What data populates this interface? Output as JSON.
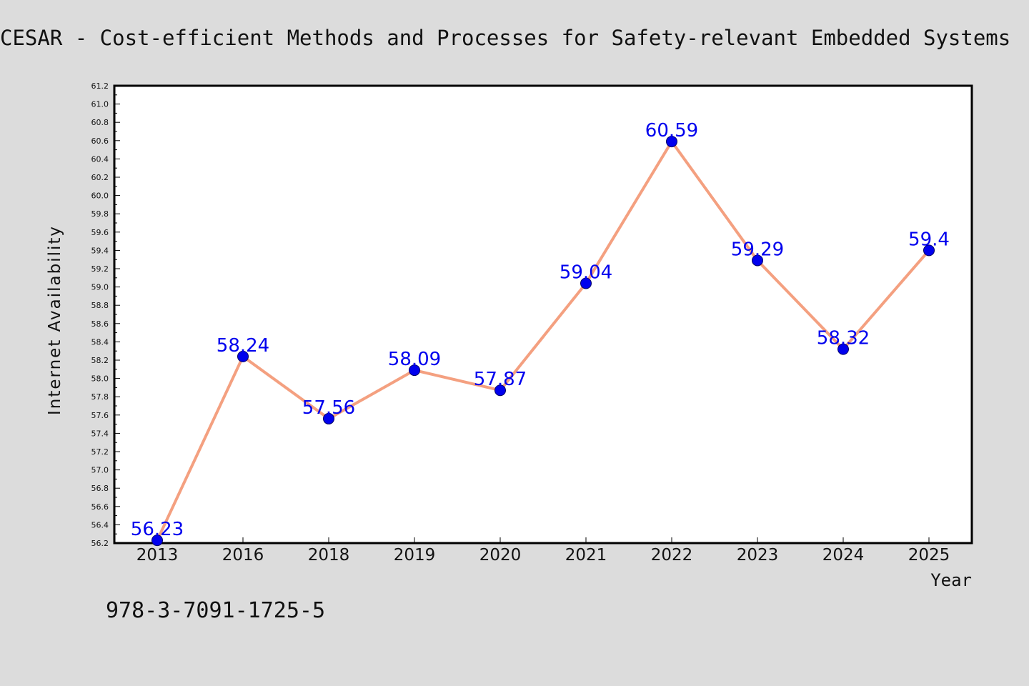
{
  "page": {
    "title": "CESAR - Cost-efficient Methods and Processes for Safety-relevant Embedded Systems",
    "note": "978-3-7091-1725-5"
  },
  "colors": {
    "background": "#dcdcdc",
    "plot_background": "#ffffff",
    "line": "#f4a080",
    "marker": "#0000ee",
    "data_label": "#0000ee",
    "text": "#111111"
  },
  "chart_data": {
    "type": "line",
    "title": "CESAR - Cost-efficient Methods and Processes for Safety-relevant Embedded Systems",
    "xlabel": "Year",
    "ylabel": "Internet Availability",
    "categories": [
      "2013",
      "2016",
      "2018",
      "2019",
      "2020",
      "2021",
      "2022",
      "2023",
      "2024",
      "2025"
    ],
    "values": [
      56.23,
      58.24,
      57.56,
      58.09,
      57.87,
      59.04,
      60.59,
      59.29,
      58.32,
      59.4
    ],
    "data_labels": [
      "56.23",
      "58.24",
      "57.56",
      "58.09",
      "57.87",
      "59.04",
      "60.59",
      "59.29",
      "58.32",
      "59.4"
    ],
    "ylim": [
      56.2,
      61.2
    ],
    "yticks": [
      "56.2",
      "56.4",
      "56.6",
      "56.8",
      "57.0",
      "57.2",
      "57.4",
      "57.6",
      "57.8",
      "58.0",
      "58.2",
      "58.4",
      "58.6",
      "58.8",
      "59.0",
      "59.2",
      "59.4",
      "59.6",
      "59.8",
      "60.0",
      "60.2",
      "60.4",
      "60.6",
      "60.8",
      "61.0",
      "61.2"
    ],
    "grid": false,
    "legend": "none",
    "markers": "filled circles",
    "line_color": "#f4a080",
    "marker_color": "#0000ee"
  }
}
